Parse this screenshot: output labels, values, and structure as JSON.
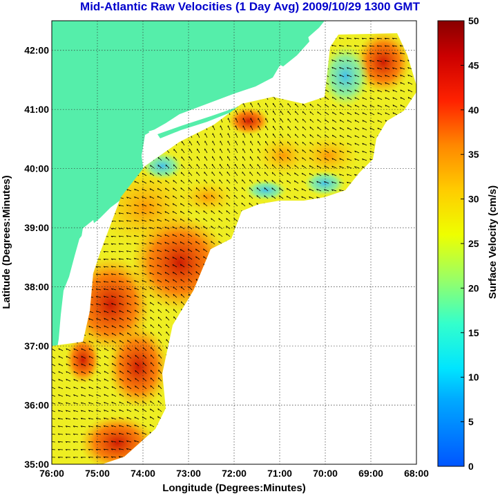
{
  "title": "Mid-Atlantic Raw Velocities (1 Day Avg) 2009/10/29 1300 GMT",
  "map": {
    "xlabel": "Longitude (Degrees:Minutes)",
    "ylabel": "Latitude (Degrees:Minutes)",
    "x_ticks": [
      {
        "value": -76,
        "label": "76:00"
      },
      {
        "value": -75,
        "label": "75:00"
      },
      {
        "value": -74,
        "label": "74:00"
      },
      {
        "value": -73,
        "label": "73:00"
      },
      {
        "value": -72,
        "label": "72:00"
      },
      {
        "value": -71,
        "label": "71:00"
      },
      {
        "value": -70,
        "label": "70:00"
      },
      {
        "value": -69,
        "label": "69:00"
      },
      {
        "value": -68,
        "label": "68:00"
      }
    ],
    "y_ticks": [
      {
        "value": 35,
        "label": "35:00"
      },
      {
        "value": 36,
        "label": "36:00"
      },
      {
        "value": 37,
        "label": "37:00"
      },
      {
        "value": 38,
        "label": "38:00"
      },
      {
        "value": 39,
        "label": "39:00"
      },
      {
        "value": 40,
        "label": "40:00"
      },
      {
        "value": 41,
        "label": "41:00"
      },
      {
        "value": 42,
        "label": "42:00"
      }
    ],
    "xlim": [
      -76,
      -68
    ],
    "ylim": [
      35,
      42.5
    ],
    "grid": true,
    "land_color": "#55eeaa",
    "water_color": "#ffffff"
  },
  "colorbar": {
    "label": "Surface Velocity (cm/s)",
    "min": 0,
    "max": 50,
    "ticks": [
      {
        "value": 0,
        "label": "0"
      },
      {
        "value": 5,
        "label": "5"
      },
      {
        "value": 10,
        "label": "10"
      },
      {
        "value": 15,
        "label": "15"
      },
      {
        "value": 20,
        "label": "20"
      },
      {
        "value": 25,
        "label": "25"
      },
      {
        "value": 30,
        "label": "30"
      },
      {
        "value": 35,
        "label": "35"
      },
      {
        "value": 40,
        "label": "40"
      },
      {
        "value": 45,
        "label": "45"
      },
      {
        "value": 50,
        "label": "50"
      }
    ]
  }
}
